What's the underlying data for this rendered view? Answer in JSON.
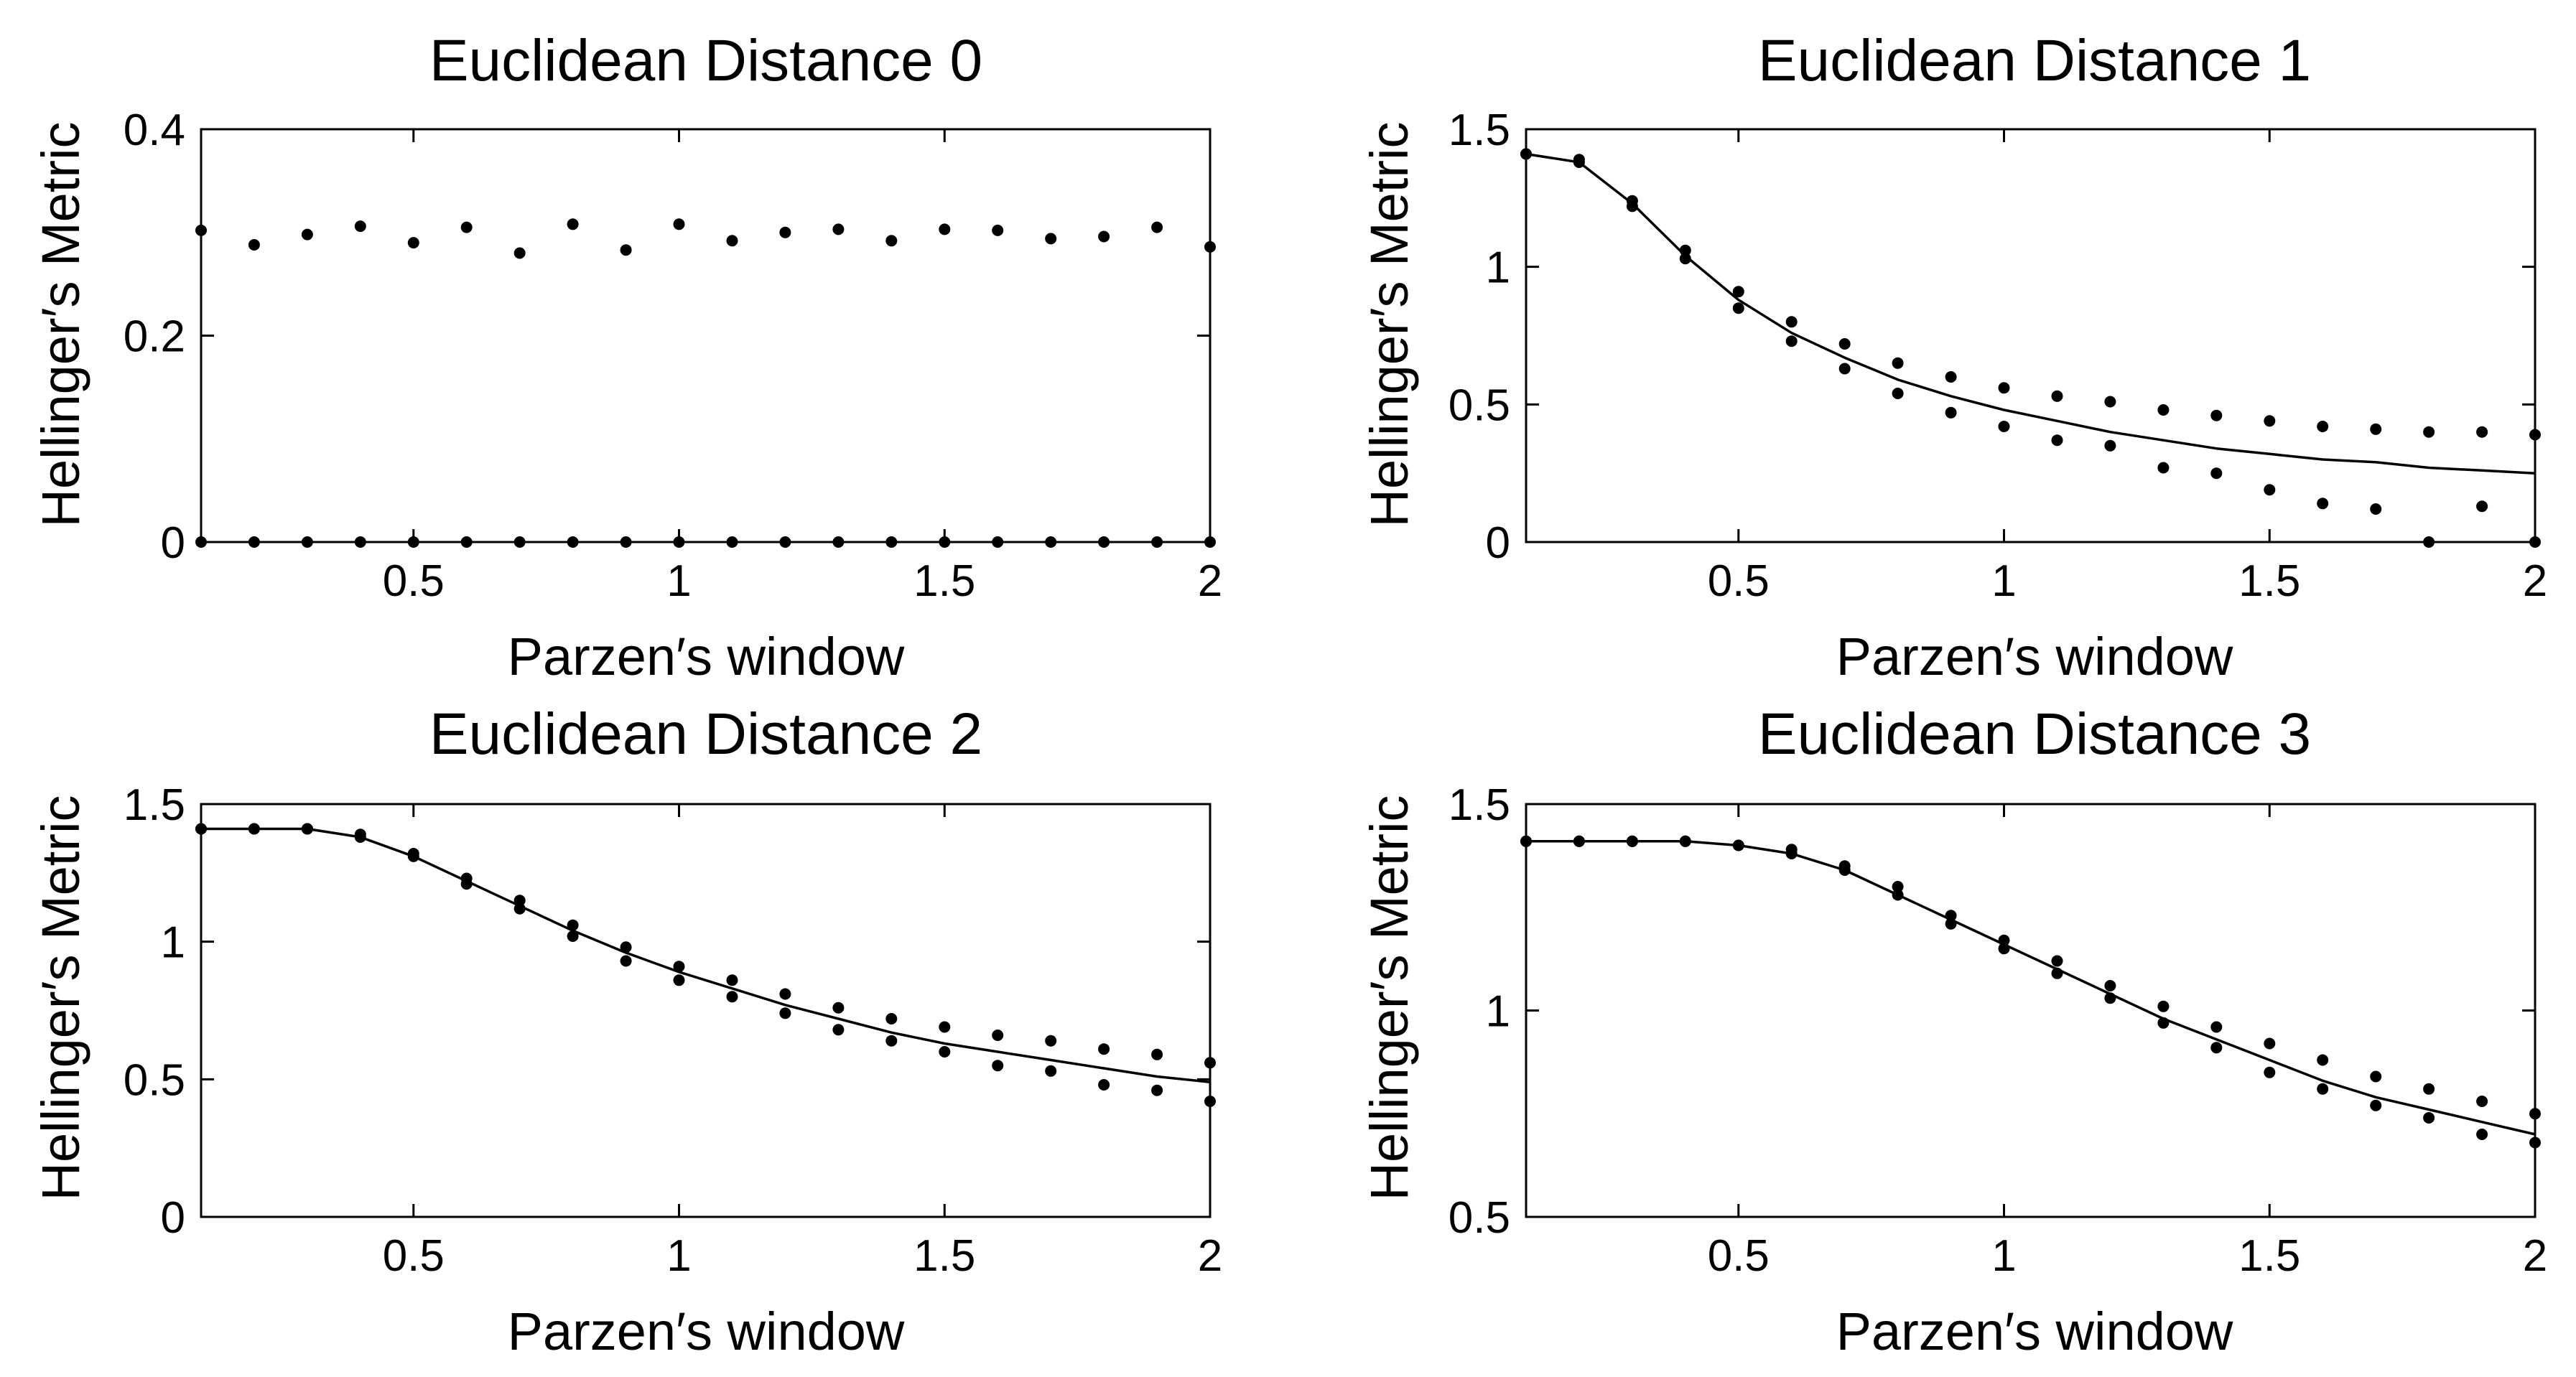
{
  "figure": {
    "colors": {
      "ink": "#000000",
      "background": "#ffffff"
    }
  },
  "chart_data": [
    {
      "type": "scatter",
      "title": "Euclidean Distance 0",
      "xlabel": "Parzen′s window",
      "ylabel": "Hellinger′s Metric",
      "xlim": [
        0.1,
        2
      ],
      "ylim": [
        0,
        0.4
      ],
      "xticks": [
        0.5,
        1,
        1.5,
        2
      ],
      "xtick_labels": [
        "0.5",
        "1",
        "1.5",
        "2"
      ],
      "yticks": [
        0,
        0.2,
        0.4
      ],
      "ytick_labels": [
        "0",
        "0.2",
        "0.4"
      ],
      "x": [
        0.1,
        0.2,
        0.3,
        0.4,
        0.5,
        0.6,
        0.7,
        0.8,
        0.9,
        1.0,
        1.1,
        1.2,
        1.3,
        1.4,
        1.5,
        1.6,
        1.7,
        1.8,
        1.9,
        2.0
      ],
      "series": [
        {
          "name": "upper points",
          "style": "dots",
          "values": [
            0.302,
            0.288,
            0.298,
            0.306,
            0.29,
            0.305,
            0.28,
            0.308,
            0.283,
            0.308,
            0.292,
            0.3,
            0.303,
            0.292,
            0.303,
            0.302,
            0.294,
            0.296,
            0.305,
            0.286
          ]
        },
        {
          "name": "lower points",
          "style": "dots",
          "values": [
            0,
            0,
            0,
            0,
            0,
            0,
            0,
            0,
            0,
            0,
            0,
            0,
            0,
            0,
            0,
            0,
            0,
            0,
            0,
            0
          ]
        }
      ]
    },
    {
      "type": "scatter",
      "title": "Euclidean Distance 1",
      "xlabel": "Parzen′s  window",
      "ylabel": "Hellinger′s Metric",
      "xlim": [
        0.1,
        2
      ],
      "ylim": [
        0,
        1.5
      ],
      "xticks": [
        0.5,
        1,
        1.5,
        2
      ],
      "xtick_labels": [
        "0.5",
        "1",
        "1.5",
        "2"
      ],
      "yticks": [
        0,
        0.5,
        1,
        1.5
      ],
      "ytick_labels": [
        "0",
        "0.5",
        "1",
        "1.5"
      ],
      "x": [
        0.1,
        0.2,
        0.3,
        0.4,
        0.5,
        0.6,
        0.7,
        0.8,
        0.9,
        1.0,
        1.1,
        1.2,
        1.3,
        1.4,
        1.5,
        1.6,
        1.7,
        1.8,
        1.9,
        2.0
      ],
      "series": [
        {
          "name": "fit",
          "style": "line",
          "values": [
            1.41,
            1.38,
            1.23,
            1.04,
            0.88,
            0.76,
            0.67,
            0.59,
            0.53,
            0.48,
            0.44,
            0.4,
            0.37,
            0.34,
            0.32,
            0.3,
            0.29,
            0.27,
            0.26,
            0.25
          ]
        },
        {
          "name": "upper points",
          "style": "dots",
          "values": [
            1.41,
            1.39,
            1.24,
            1.06,
            0.91,
            0.8,
            0.72,
            0.65,
            0.6,
            0.56,
            0.53,
            0.51,
            0.48,
            0.46,
            0.44,
            0.42,
            0.41,
            0.4,
            0.4,
            0.39
          ]
        },
        {
          "name": "lower points",
          "style": "dots",
          "values": [
            1.41,
            1.38,
            1.22,
            1.03,
            0.85,
            0.73,
            0.63,
            0.54,
            0.47,
            0.42,
            0.37,
            0.35,
            0.27,
            0.25,
            0.19,
            0.14,
            0.12,
            0.0,
            0.13,
            0.0
          ]
        }
      ]
    },
    {
      "type": "scatter",
      "title": "Euclidean Distance 2",
      "xlabel": "Parzen′s  window",
      "ylabel": "Hellinger′s Metric",
      "xlim": [
        0.1,
        2
      ],
      "ylim": [
        0,
        1.5
      ],
      "xticks": [
        0.5,
        1,
        1.5,
        2
      ],
      "xtick_labels": [
        "0.5",
        "1",
        "1.5",
        "2"
      ],
      "yticks": [
        0,
        0.5,
        1,
        1.5
      ],
      "ytick_labels": [
        "0",
        "0.5",
        "1",
        "1.5"
      ],
      "x": [
        0.1,
        0.2,
        0.3,
        0.4,
        0.5,
        0.6,
        0.7,
        0.8,
        0.9,
        1.0,
        1.1,
        1.2,
        1.3,
        1.4,
        1.5,
        1.6,
        1.7,
        1.8,
        1.9,
        2.0
      ],
      "series": [
        {
          "name": "fit",
          "style": "line",
          "values": [
            1.41,
            1.41,
            1.41,
            1.38,
            1.31,
            1.22,
            1.13,
            1.04,
            0.96,
            0.89,
            0.83,
            0.77,
            0.72,
            0.67,
            0.63,
            0.6,
            0.57,
            0.54,
            0.51,
            0.49
          ]
        },
        {
          "name": "upper points",
          "style": "dots",
          "values": [
            1.41,
            1.41,
            1.41,
            1.39,
            1.32,
            1.23,
            1.15,
            1.06,
            0.98,
            0.91,
            0.86,
            0.81,
            0.76,
            0.72,
            0.69,
            0.66,
            0.64,
            0.61,
            0.59,
            0.56
          ]
        },
        {
          "name": "lower points",
          "style": "dots",
          "values": [
            1.41,
            1.41,
            1.41,
            1.38,
            1.31,
            1.21,
            1.12,
            1.02,
            0.93,
            0.86,
            0.8,
            0.74,
            0.68,
            0.64,
            0.6,
            0.55,
            0.53,
            0.48,
            0.46,
            0.42
          ]
        }
      ]
    },
    {
      "type": "scatter",
      "title": "Euclidean Distance 3",
      "xlabel": "Parzen′s  window",
      "ylabel": "Hellinger′s Metric",
      "xlim": [
        0.1,
        2
      ],
      "ylim": [
        0.5,
        1.5
      ],
      "xticks": [
        0.5,
        1,
        1.5,
        2
      ],
      "xtick_labels": [
        "0.5",
        "1",
        "1.5",
        "2"
      ],
      "yticks": [
        0.5,
        1,
        1.5
      ],
      "ytick_labels": [
        "0.5",
        "1",
        "1.5"
      ],
      "x": [
        0.1,
        0.2,
        0.3,
        0.4,
        0.5,
        0.6,
        0.7,
        0.8,
        0.9,
        1.0,
        1.1,
        1.2,
        1.3,
        1.4,
        1.5,
        1.6,
        1.7,
        1.8,
        1.9,
        2.0
      ],
      "series": [
        {
          "name": "fit",
          "style": "line",
          "values": [
            1.41,
            1.41,
            1.41,
            1.41,
            1.4,
            1.38,
            1.34,
            1.28,
            1.22,
            1.16,
            1.1,
            1.04,
            0.98,
            0.93,
            0.88,
            0.83,
            0.79,
            0.76,
            0.73,
            0.7
          ]
        },
        {
          "name": "upper points",
          "style": "dots",
          "values": [
            1.41,
            1.41,
            1.41,
            1.41,
            1.4,
            1.39,
            1.35,
            1.3,
            1.23,
            1.17,
            1.12,
            1.06,
            1.01,
            0.96,
            0.92,
            0.88,
            0.84,
            0.81,
            0.78,
            0.75
          ]
        },
        {
          "name": "lower points",
          "style": "dots",
          "values": [
            1.41,
            1.41,
            1.41,
            1.41,
            1.4,
            1.38,
            1.34,
            1.28,
            1.21,
            1.15,
            1.09,
            1.03,
            0.97,
            0.91,
            0.85,
            0.81,
            0.77,
            0.74,
            0.7,
            0.68
          ]
        }
      ]
    }
  ]
}
